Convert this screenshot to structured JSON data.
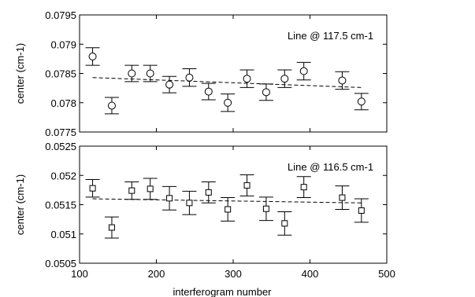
{
  "chart_data": [
    {
      "type": "scatter",
      "ylabel": "center (cm-1)",
      "annotation": "Line @ 117.5 cm-1",
      "marker": "circle",
      "xlim": [
        100,
        500
      ],
      "ylim": [
        0.0775,
        0.0795
      ],
      "yticks": [
        "0.0775",
        "0.078",
        "0.0785",
        "0.079",
        "0.0795"
      ],
      "points": [
        {
          "x": 117,
          "y": 0.07879,
          "err": 0.00015
        },
        {
          "x": 142,
          "y": 0.07795,
          "err": 0.00014
        },
        {
          "x": 168,
          "y": 0.0785,
          "err": 0.00014
        },
        {
          "x": 192,
          "y": 0.0785,
          "err": 0.00014
        },
        {
          "x": 217,
          "y": 0.07831,
          "err": 0.00014
        },
        {
          "x": 243,
          "y": 0.07843,
          "err": 0.00015
        },
        {
          "x": 268,
          "y": 0.07819,
          "err": 0.00014
        },
        {
          "x": 293,
          "y": 0.078,
          "err": 0.00015
        },
        {
          "x": 318,
          "y": 0.07841,
          "err": 0.00015
        },
        {
          "x": 343,
          "y": 0.07818,
          "err": 0.00014
        },
        {
          "x": 367,
          "y": 0.07841,
          "err": 0.00015
        },
        {
          "x": 392,
          "y": 0.07854,
          "err": 0.00015
        },
        {
          "x": 442,
          "y": 0.07838,
          "err": 0.00015
        },
        {
          "x": 467,
          "y": 0.07802,
          "err": 0.00014
        }
      ],
      "fit_line": {
        "x": [
          117,
          467
        ],
        "y": [
          0.07843,
          0.07826
        ]
      }
    },
    {
      "type": "scatter",
      "ylabel": "center (cm-1)",
      "xlabel": "interferogram number",
      "annotation": "Line @ 116.5 cm-1",
      "marker": "square",
      "xlim": [
        100,
        500
      ],
      "ylim": [
        0.0505,
        0.0525
      ],
      "xticks": [
        "100",
        "200",
        "300",
        "400",
        "500"
      ],
      "yticks": [
        "0.0505",
        "0.051",
        "0.0515",
        "0.052",
        "0.0525"
      ],
      "points": [
        {
          "x": 117,
          "y": 0.05178,
          "err": 0.00015
        },
        {
          "x": 142,
          "y": 0.05111,
          "err": 0.00018
        },
        {
          "x": 168,
          "y": 0.05174,
          "err": 0.00015
        },
        {
          "x": 192,
          "y": 0.05177,
          "err": 0.00018
        },
        {
          "x": 217,
          "y": 0.05161,
          "err": 0.0002
        },
        {
          "x": 243,
          "y": 0.05153,
          "err": 0.0002
        },
        {
          "x": 268,
          "y": 0.05171,
          "err": 0.00018
        },
        {
          "x": 293,
          "y": 0.05142,
          "err": 0.0002
        },
        {
          "x": 318,
          "y": 0.05183,
          "err": 0.00018
        },
        {
          "x": 343,
          "y": 0.05143,
          "err": 0.0002
        },
        {
          "x": 367,
          "y": 0.05118,
          "err": 0.0002
        },
        {
          "x": 392,
          "y": 0.0518,
          "err": 0.00018
        },
        {
          "x": 442,
          "y": 0.05162,
          "err": 0.0002
        },
        {
          "x": 467,
          "y": 0.0514,
          "err": 0.0002
        }
      ],
      "fit_line": {
        "x": [
          117,
          467
        ],
        "y": [
          0.0516,
          0.05153
        ]
      }
    }
  ]
}
